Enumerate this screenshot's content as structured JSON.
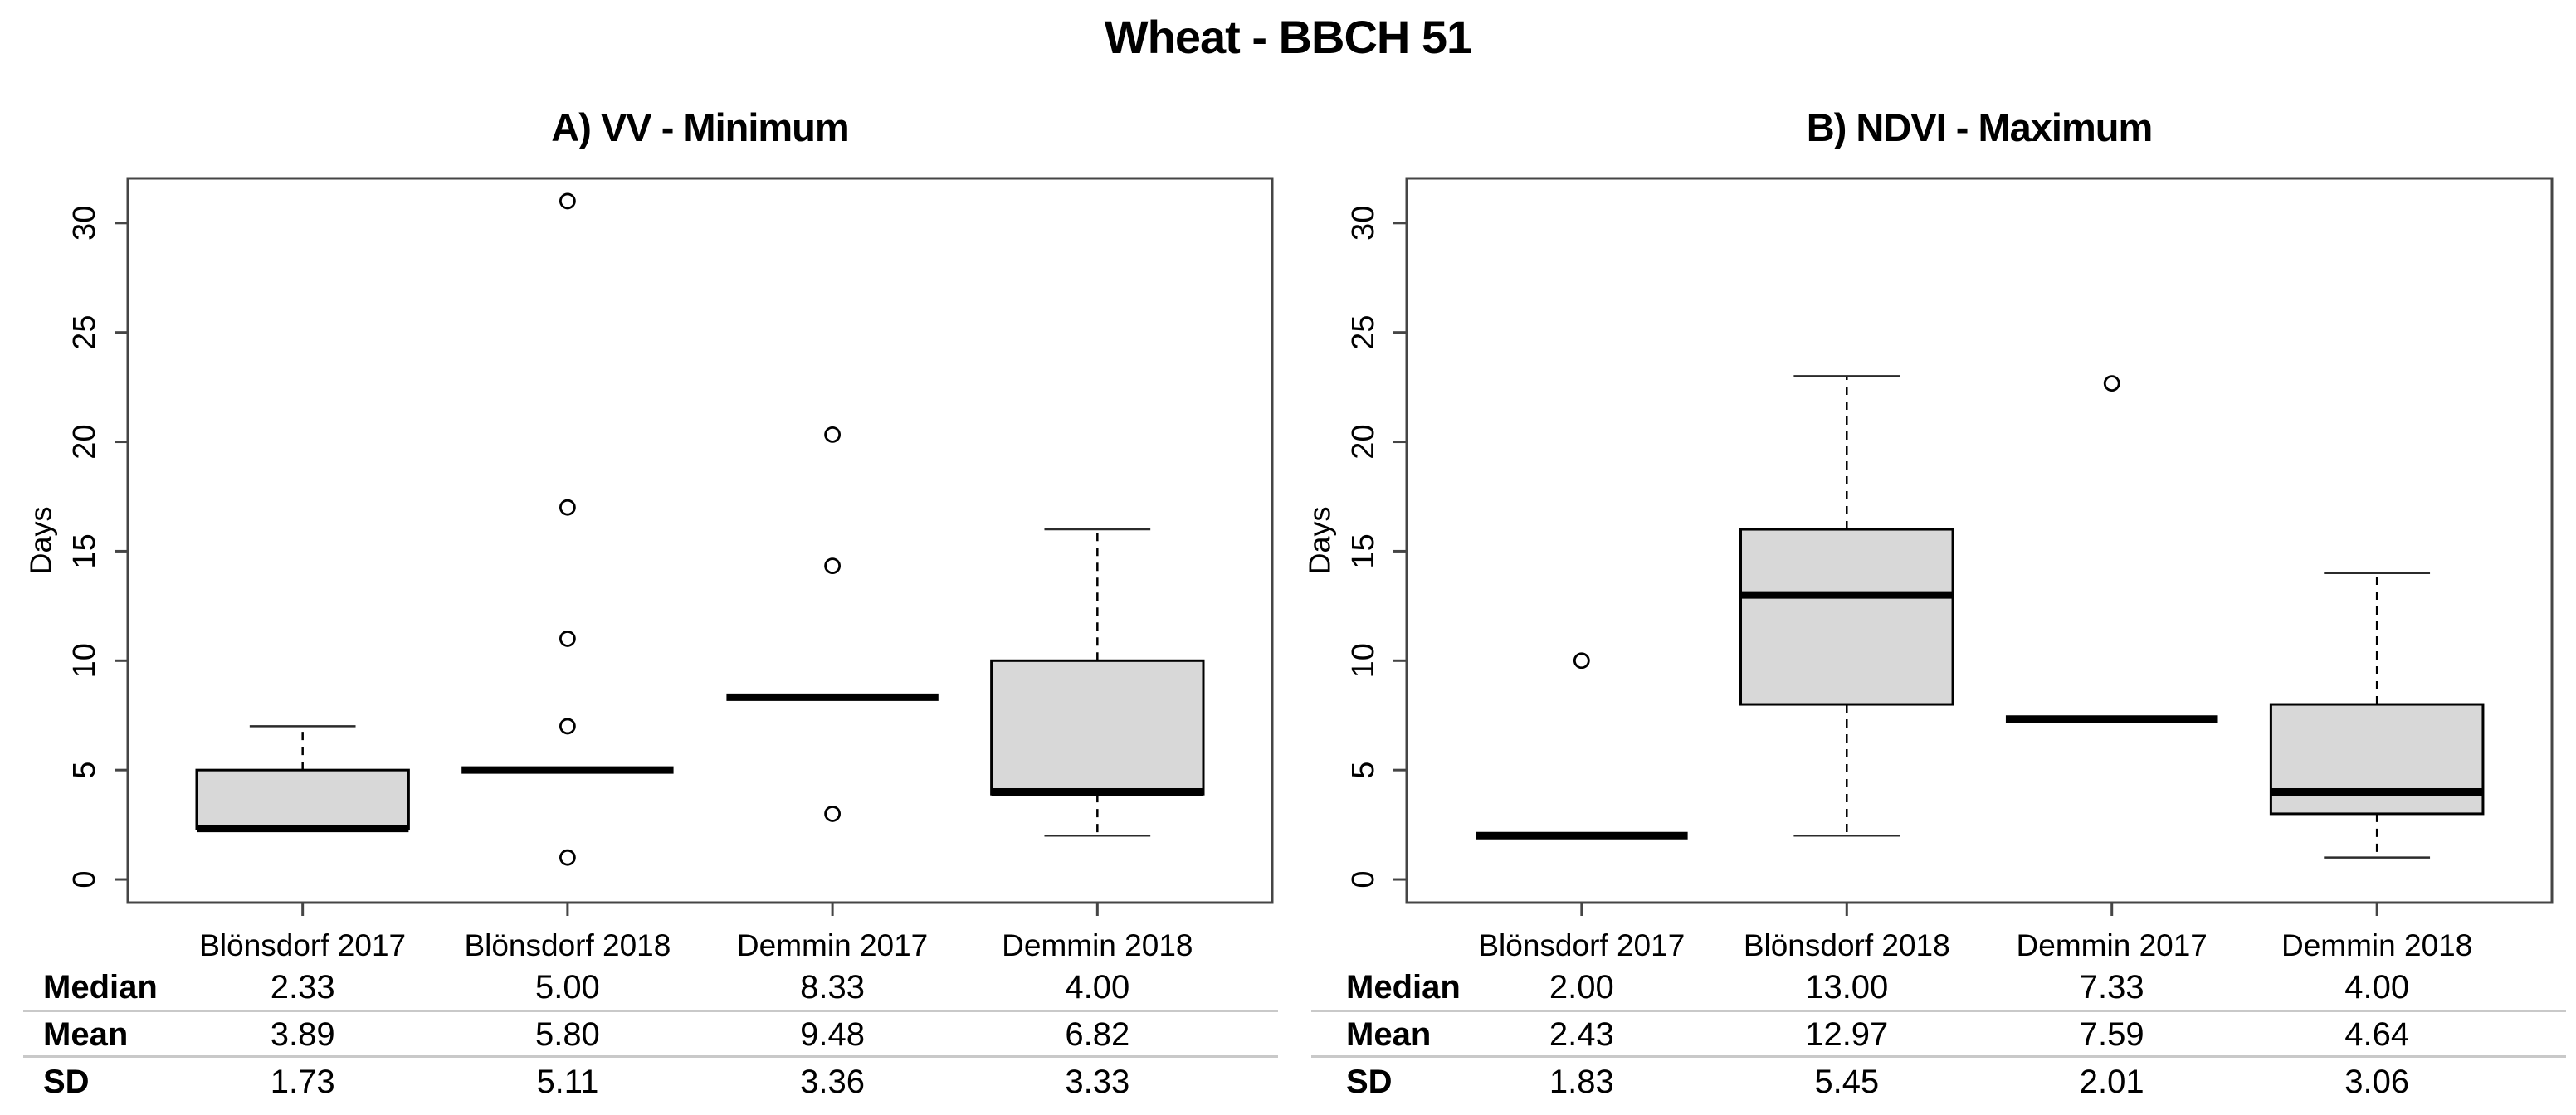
{
  "title": "Wheat - BBCH 51",
  "colors": {
    "box_fill": "#d8d8d8",
    "axis": "#454545",
    "median": "#000000",
    "separator": "#c9c9c9",
    "background": "#ffffff"
  },
  "chart_data": [
    {
      "type": "boxplot",
      "title": "A) VV - Minimum",
      "xlabel": "",
      "ylabel": "Days",
      "ylim": [
        0,
        30
      ],
      "yticks": [
        0,
        5,
        10,
        15,
        20,
        25,
        30
      ],
      "grid": false,
      "legend": "none",
      "categories": [
        "Blönsdorf 2017",
        "Blönsdorf 2018",
        "Demmin 2017",
        "Demmin 2018"
      ],
      "boxes": [
        {
          "category": "Blönsdorf 2017",
          "q1": 2.33,
          "median": 2.33,
          "q3": 5.0,
          "whisker_low": null,
          "whisker_high": 7.0,
          "outliers": []
        },
        {
          "category": "Blönsdorf 2018",
          "q1": 5.0,
          "median": 5.0,
          "q3": 5.0,
          "whisker_low": null,
          "whisker_high": null,
          "outliers": [
            1,
            7,
            11,
            17,
            31
          ]
        },
        {
          "category": "Demmin 2017",
          "q1": 8.33,
          "median": 8.33,
          "q3": 8.33,
          "whisker_low": null,
          "whisker_high": null,
          "outliers": [
            3,
            14.33,
            20.33
          ]
        },
        {
          "category": "Demmin 2018",
          "q1": 3.9,
          "median": 4.0,
          "q3": 10.0,
          "whisker_low": 2.0,
          "whisker_high": 16.0,
          "outliers": []
        }
      ],
      "stats_table": {
        "rows": [
          {
            "label": "Median",
            "values": [
              "2.33",
              "5.00",
              "8.33",
              "4.00"
            ]
          },
          {
            "label": "Mean",
            "values": [
              "3.89",
              "5.80",
              "9.48",
              "6.82"
            ]
          },
          {
            "label": "SD",
            "values": [
              "1.73",
              "5.11",
              "3.36",
              "3.33"
            ]
          }
        ]
      }
    },
    {
      "type": "boxplot",
      "title": "B) NDVI - Maximum",
      "xlabel": "",
      "ylabel": "Days",
      "ylim": [
        0,
        30
      ],
      "yticks": [
        0,
        5,
        10,
        15,
        20,
        25,
        30
      ],
      "grid": false,
      "legend": "none",
      "categories": [
        "Blönsdorf 2017",
        "Blönsdorf 2018",
        "Demmin 2017",
        "Demmin 2018"
      ],
      "boxes": [
        {
          "category": "Blönsdorf 2017",
          "q1": 2.0,
          "median": 2.0,
          "q3": 2.0,
          "whisker_low": null,
          "whisker_high": null,
          "outliers": [
            10
          ]
        },
        {
          "category": "Blönsdorf 2018",
          "q1": 8.0,
          "median": 13.0,
          "q3": 16.0,
          "whisker_low": 2.0,
          "whisker_high": 23.0,
          "outliers": []
        },
        {
          "category": "Demmin 2017",
          "q1": 7.33,
          "median": 7.33,
          "q3": 7.33,
          "whisker_low": null,
          "whisker_high": null,
          "outliers": [
            22.67
          ]
        },
        {
          "category": "Demmin 2018",
          "q1": 3.0,
          "median": 4.0,
          "q3": 8.0,
          "whisker_low": 1.0,
          "whisker_high": 14.0,
          "outliers": []
        }
      ],
      "stats_table": {
        "rows": [
          {
            "label": "Median",
            "values": [
              "2.00",
              "13.00",
              "7.33",
              "4.00"
            ]
          },
          {
            "label": "Mean",
            "values": [
              "2.43",
              "12.97",
              "7.59",
              "4.64"
            ]
          },
          {
            "label": "SD",
            "values": [
              "1.83",
              "5.45",
              "2.01",
              "3.06"
            ]
          }
        ]
      }
    }
  ]
}
